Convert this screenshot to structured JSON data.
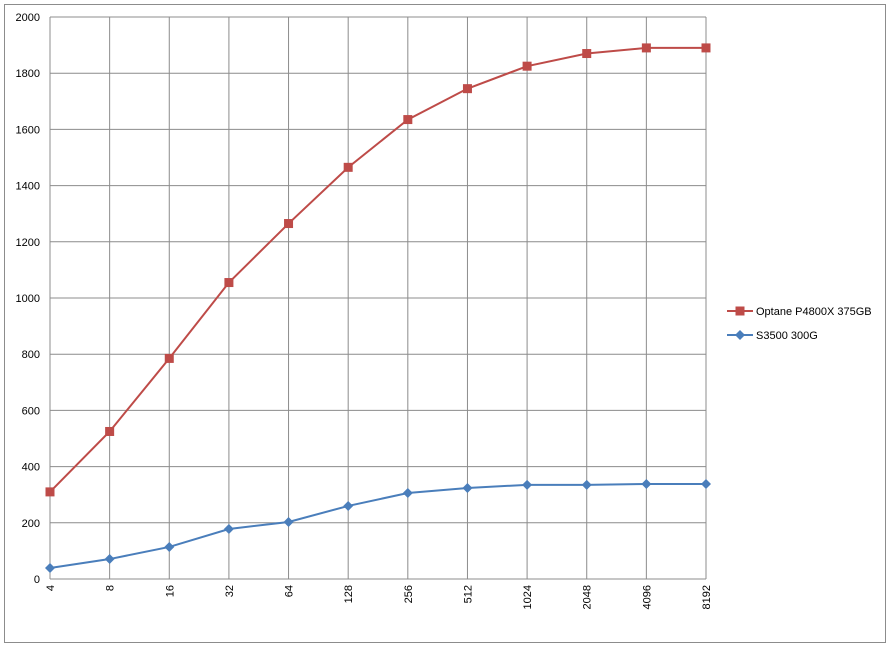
{
  "chart_data": {
    "type": "line",
    "categories": [
      "4",
      "8",
      "16",
      "32",
      "64",
      "128",
      "256",
      "512",
      "1024",
      "2048",
      "4096",
      "8192"
    ],
    "series": [
      {
        "name": "Optane P4800X 375GB",
        "color": "#be4b48",
        "marker": "square",
        "values": [
          310,
          525,
          785,
          1055,
          1265,
          1465,
          1635,
          1745,
          1825,
          1870,
          1890,
          1890
        ]
      },
      {
        "name": "S3500 300G",
        "color": "#4a7ebb",
        "marker": "diamond",
        "values": [
          39,
          71,
          114,
          178,
          203,
          260,
          306,
          324,
          335,
          335,
          338,
          338
        ]
      }
    ],
    "ylim": [
      0,
      2000
    ],
    "yticks": [
      0,
      200,
      400,
      600,
      800,
      1000,
      1200,
      1400,
      1600,
      1800,
      2000
    ],
    "grid": true,
    "legend": "right"
  }
}
